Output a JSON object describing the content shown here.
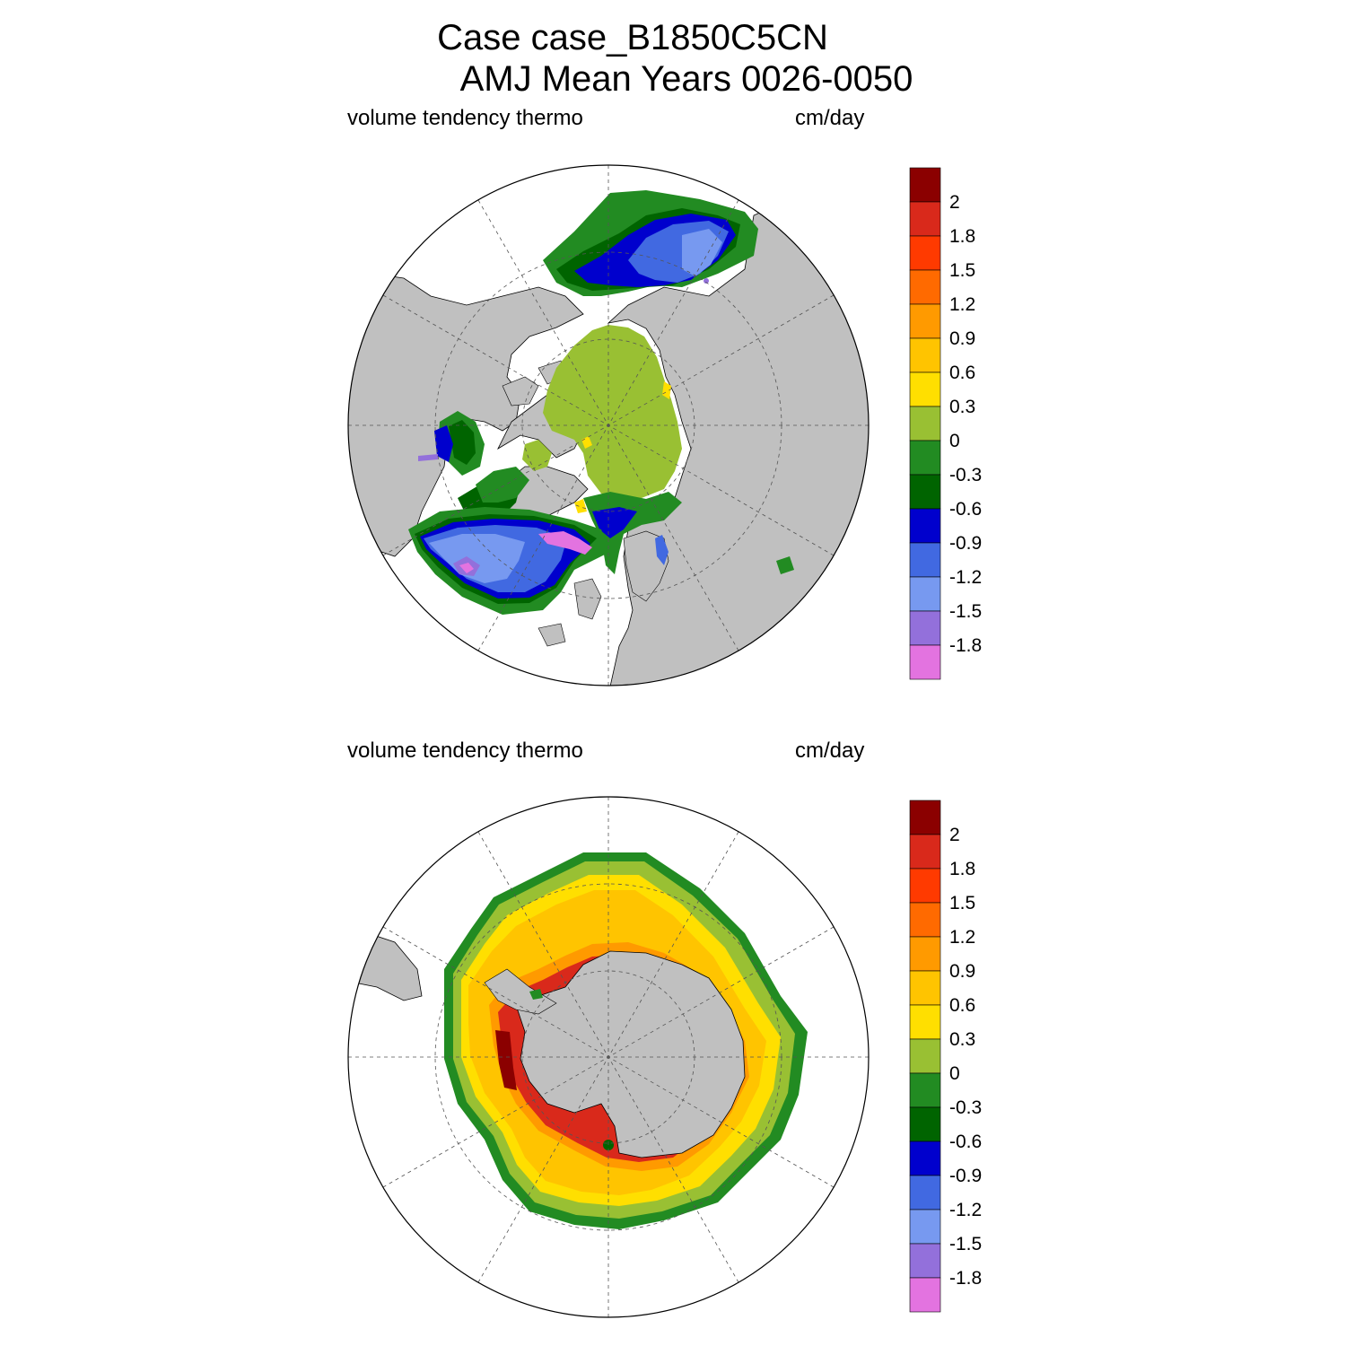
{
  "title": {
    "line1": "Case case_B1850C5CN",
    "line2": "AMJ Mean   Years 0026-0050"
  },
  "panels": [
    {
      "hemisphere": "north",
      "left_label": "volume tendency thermo",
      "right_label": "cm/day"
    },
    {
      "hemisphere": "south",
      "left_label": "volume tendency thermo",
      "right_label": "cm/day"
    }
  ],
  "colorbar": {
    "levels": [
      "2",
      "1.8",
      "1.5",
      "1.2",
      "0.9",
      "0.6",
      "0.3",
      "0",
      "-0.3",
      "-0.6",
      "-0.9",
      "-1.2",
      "-1.5",
      "-1.8"
    ],
    "colors": [
      "#8b0000",
      "#d9291b",
      "#ff3a00",
      "#ff6a00",
      "#ff9a00",
      "#ffc400",
      "#ffdf00",
      "#99c033",
      "#228b22",
      "#006400",
      "#0000cd",
      "#4169e1",
      "#7799f0",
      "#9370db",
      "#e373e0"
    ]
  },
  "colors": {
    "land": "#c0c0c0",
    "ocean": "#ffffff"
  }
}
